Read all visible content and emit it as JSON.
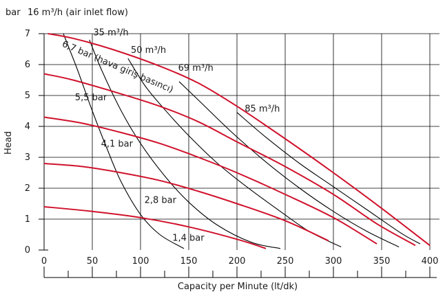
{
  "chart_data": {
    "type": "line",
    "title": "",
    "xlabel": "Capacity per Minute (lt/dk)",
    "ylabel": "Head",
    "yunit_label": "bar",
    "xlim": [
      0,
      410
    ],
    "ylim": [
      0,
      7
    ],
    "xticks": [
      0,
      50,
      100,
      150,
      200,
      250,
      300,
      350,
      400
    ],
    "yticks": [
      0,
      1,
      2,
      3,
      4,
      5,
      6,
      7
    ],
    "grid": true,
    "colors": {
      "pressure": "#d0112b",
      "airflow": "#000000",
      "grid": "#000000"
    },
    "pressure_curves": [
      {
        "name": "6,7 bar (hava giriş basıncı)",
        "points": [
          [
            4,
            7
          ],
          [
            30,
            6.85
          ],
          [
            70,
            6.5
          ],
          [
            120,
            5.95
          ],
          [
            160,
            5.4
          ],
          [
            200,
            4.65
          ],
          [
            250,
            3.6
          ],
          [
            300,
            2.5
          ],
          [
            350,
            1.35
          ],
          [
            400,
            0.15
          ]
        ]
      },
      {
        "name": "5,5 bar",
        "points": [
          [
            0,
            5.7
          ],
          [
            30,
            5.5
          ],
          [
            80,
            5.05
          ],
          [
            120,
            4.65
          ],
          [
            160,
            4.15
          ],
          [
            200,
            3.5
          ],
          [
            250,
            2.7
          ],
          [
            300,
            1.8
          ],
          [
            345,
            0.85
          ],
          [
            385,
            0.15
          ]
        ]
      },
      {
        "name": "4,1 bar",
        "points": [
          [
            0,
            4.3
          ],
          [
            40,
            4.1
          ],
          [
            80,
            3.8
          ],
          [
            120,
            3.45
          ],
          [
            160,
            3.0
          ],
          [
            200,
            2.5
          ],
          [
            250,
            1.8
          ],
          [
            300,
            1.05
          ],
          [
            345,
            0.2
          ]
        ]
      },
      {
        "name": "2,8 bar",
        "points": [
          [
            0,
            2.8
          ],
          [
            40,
            2.7
          ],
          [
            80,
            2.5
          ],
          [
            120,
            2.25
          ],
          [
            160,
            1.9
          ],
          [
            200,
            1.5
          ],
          [
            250,
            0.95
          ],
          [
            295,
            0.3
          ]
        ]
      },
      {
        "name": "1,4 bar",
        "points": [
          [
            0,
            1.4
          ],
          [
            50,
            1.25
          ],
          [
            100,
            1.05
          ],
          [
            150,
            0.75
          ],
          [
            200,
            0.35
          ],
          [
            230,
            0.05
          ]
        ]
      }
    ],
    "airflow_curves": [
      {
        "name": "16 m³/h (air inlet flow)",
        "points": [
          [
            20,
            7
          ],
          [
            25,
            6.6
          ],
          [
            35,
            5.8
          ],
          [
            50,
            4.5
          ],
          [
            65,
            3.3
          ],
          [
            80,
            2.2
          ],
          [
            100,
            1.15
          ],
          [
            120,
            0.5
          ],
          [
            145,
            0.05
          ]
        ]
      },
      {
        "name": "35 m³/h",
        "points": [
          [
            47,
            6.8
          ],
          [
            60,
            5.8
          ],
          [
            80,
            4.5
          ],
          [
            100,
            3.45
          ],
          [
            125,
            2.4
          ],
          [
            150,
            1.55
          ],
          [
            180,
            0.8
          ],
          [
            215,
            0.25
          ],
          [
            245,
            0.05
          ]
        ]
      },
      {
        "name": "50 m³/h",
        "points": [
          [
            87,
            6.2
          ],
          [
            105,
            5.3
          ],
          [
            125,
            4.55
          ],
          [
            150,
            3.7
          ],
          [
            180,
            2.8
          ],
          [
            210,
            2.05
          ],
          [
            245,
            1.25
          ],
          [
            275,
            0.6
          ],
          [
            308,
            0.1
          ]
        ]
      },
      {
        "name": "69 m³/h",
        "points": [
          [
            140,
            5.45
          ],
          [
            165,
            4.7
          ],
          [
            195,
            3.8
          ],
          [
            230,
            2.85
          ],
          [
            265,
            2.0
          ],
          [
            300,
            1.25
          ],
          [
            335,
            0.6
          ],
          [
            368,
            0.1
          ]
        ]
      },
      {
        "name": "85 m³/h",
        "points": [
          [
            200,
            4.45
          ],
          [
            230,
            3.65
          ],
          [
            265,
            2.8
          ],
          [
            300,
            2.05
          ],
          [
            335,
            1.3
          ],
          [
            370,
            0.55
          ],
          [
            390,
            0.2
          ]
        ]
      }
    ],
    "annotations": {
      "unit_label": "bar",
      "top_label": "16 m³/h (air inlet flow)",
      "labels": [
        {
          "id": "a35",
          "text": "35 m³/h",
          "x": 51,
          "y": 6.95,
          "anchor": "start",
          "rot": 0
        },
        {
          "id": "a50",
          "text": "50 m³/h",
          "x": 90,
          "y": 6.38,
          "anchor": "start",
          "rot": 0
        },
        {
          "id": "a69",
          "text": "69 m³/h",
          "x": 139,
          "y": 5.8,
          "anchor": "start",
          "rot": 0
        },
        {
          "id": "a85",
          "text": "85 m³/h",
          "x": 208,
          "y": 4.48,
          "anchor": "start",
          "rot": 0
        },
        {
          "id": "p67",
          "text": "6,7 bar (hava giriş basıncı)",
          "x": 18,
          "y": 6.6,
          "anchor": "start",
          "rot": 23
        },
        {
          "id": "p55",
          "text": "5,5 bar",
          "x": 32,
          "y": 4.85,
          "anchor": "start",
          "rot": 0
        },
        {
          "id": "p41",
          "text": "4,1 bar",
          "x": 59,
          "y": 3.35,
          "anchor": "start",
          "rot": 0
        },
        {
          "id": "p28",
          "text": "2,8 bar",
          "x": 104,
          "y": 1.52,
          "anchor": "start",
          "rot": 0
        },
        {
          "id": "p14",
          "text": "1,4 bar",
          "x": 133,
          "y": 0.3,
          "anchor": "start",
          "rot": 0
        }
      ]
    }
  }
}
